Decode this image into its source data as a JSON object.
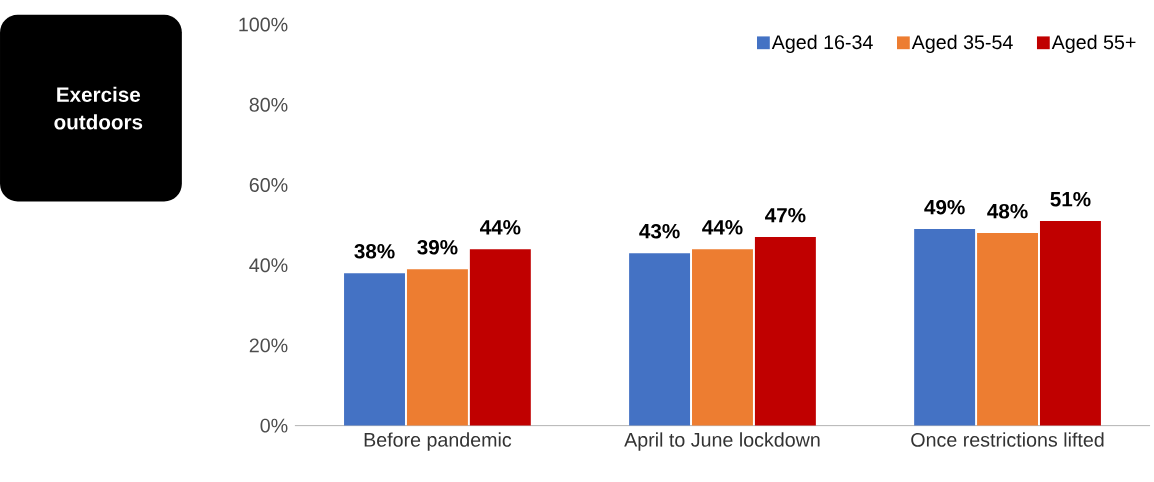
{
  "chart_data": {
    "type": "bar",
    "title": "Exercise outdoors",
    "categories": [
      "Before pandemic",
      "April to June lockdown",
      "Once restrictions lifted"
    ],
    "series": [
      {
        "name": "Aged 16-34",
        "color": "#4472c4",
        "values": [
          38,
          43,
          49
        ],
        "value_labels": [
          "38%",
          "43%",
          "49%"
        ]
      },
      {
        "name": "Aged 35-54",
        "color": "#ed7d31",
        "values": [
          39,
          44,
          48
        ],
        "value_labels": [
          "39%",
          "44%",
          "48%"
        ]
      },
      {
        "name": "Aged 55+",
        "color": "#c00000",
        "values": [
          44,
          47,
          51
        ],
        "value_labels": [
          "44%",
          "47%",
          "51%"
        ]
      }
    ],
    "ylim": [
      0,
      100
    ],
    "yticks": [
      {
        "value": 0,
        "label": "0%"
      },
      {
        "value": 20,
        "label": "20%"
      },
      {
        "value": 40,
        "label": "40%"
      },
      {
        "value": 60,
        "label": "60%"
      },
      {
        "value": 80,
        "label": "80%"
      },
      {
        "value": 100,
        "label": "100%"
      }
    ],
    "grid": false,
    "legend": "top right"
  }
}
